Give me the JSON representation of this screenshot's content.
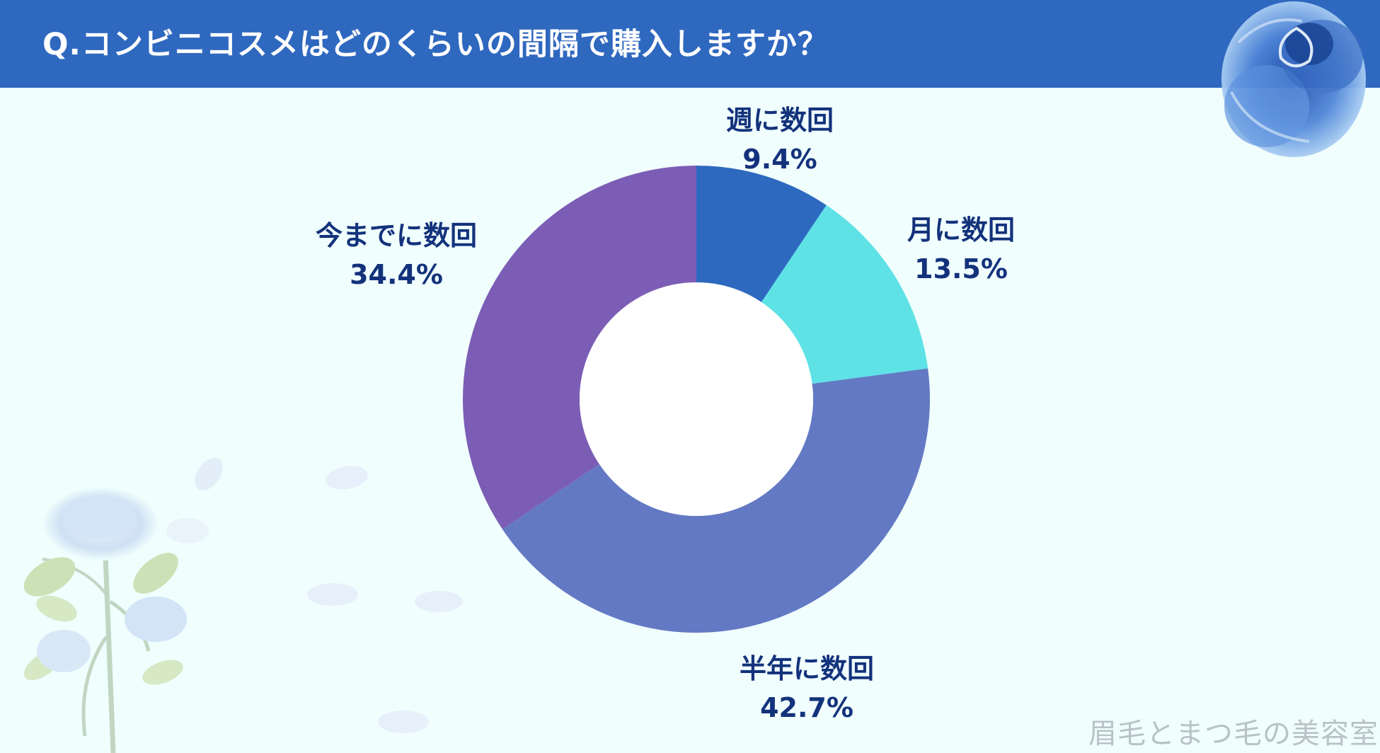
{
  "header": {
    "title": "Q.コンビニコスメはどのくらいの間隔で購入しますか？"
  },
  "chart_data": {
    "type": "pie",
    "donut": true,
    "categories": [
      "週に数回",
      "月に数回",
      "半年に数回",
      "今までに数回"
    ],
    "values": [
      9.4,
      13.5,
      42.7,
      34.4
    ],
    "labels": [
      "9.4%",
      "13.5%",
      "42.7%",
      "34.4%"
    ],
    "colors": [
      "#2e69c0",
      "#5ee2e6",
      "#6379c3",
      "#7c5db5"
    ],
    "unit": "%"
  },
  "watermark": "眉毛とまつ毛の美容室",
  "decorations": {
    "top_right": "blue-rose-icon",
    "bottom_left": "rose-branch-icon"
  }
}
